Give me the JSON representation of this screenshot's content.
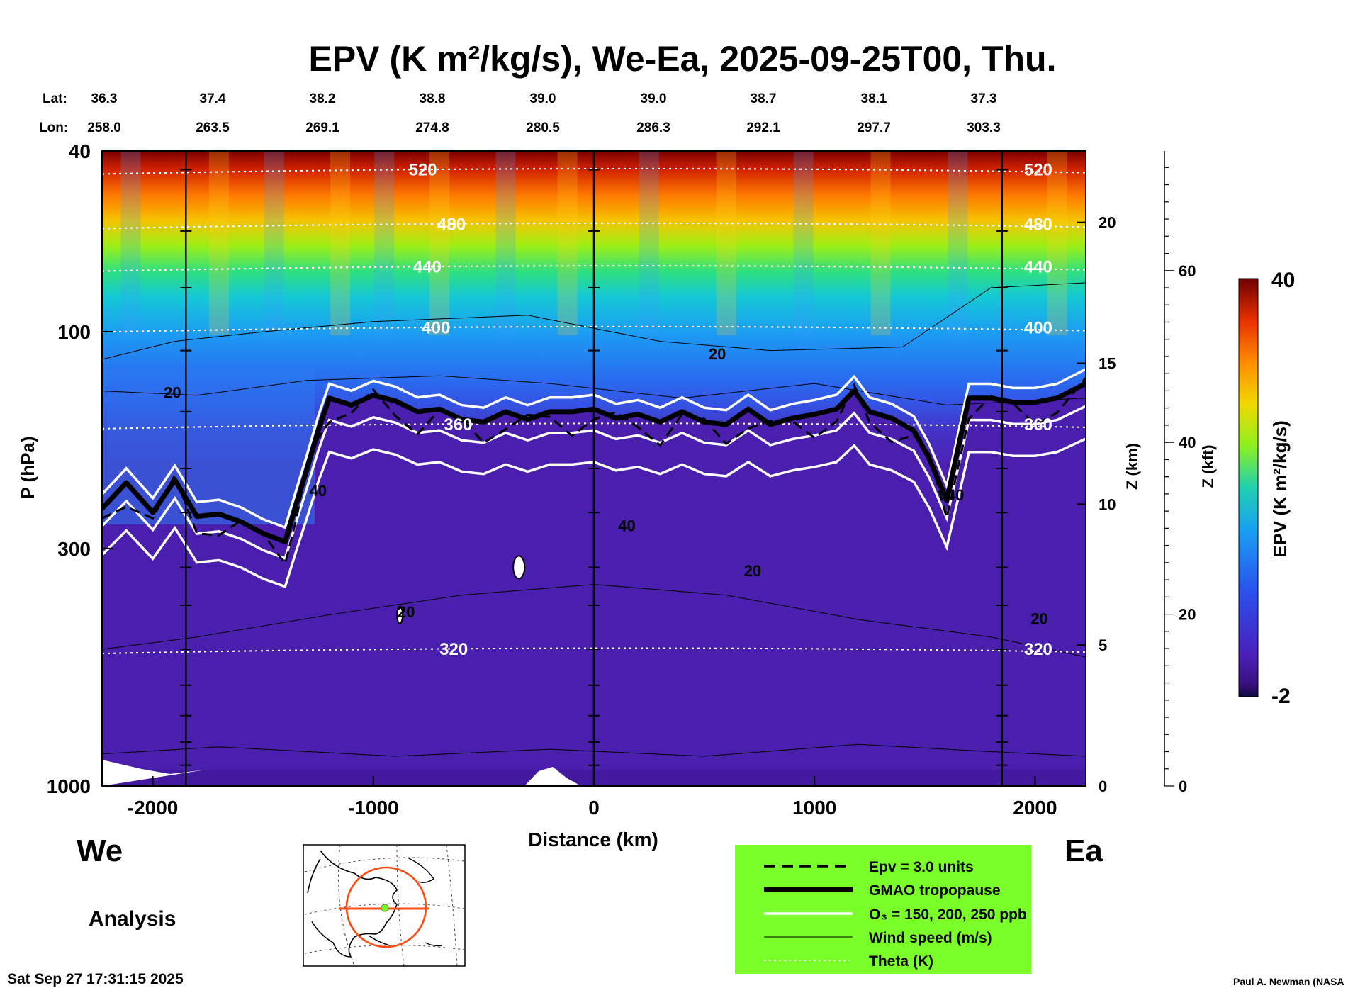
{
  "chart_data": {
    "type": "heatmap",
    "title": "EPV (K m²/kg/s), We-Ea, 2025-09-25T00, Thu.",
    "xlabel": "Distance (km)",
    "ylabel": "P (hPa)",
    "z_km_label": "Z (km)",
    "z_kft_label": "Z (kft)",
    "colorbar_label": "EPV (K m²/kg/s)",
    "colorbar_min": "-2",
    "colorbar_max": "40",
    "xlim": [
      -2230,
      2230
    ],
    "ylim": [
      1000,
      40
    ],
    "x_ticks": [
      "-2000",
      "-1000",
      "0",
      "1000",
      "2000"
    ],
    "y_ticks": [
      "40",
      "100",
      "300",
      "1000"
    ],
    "z_km_ticks": [
      "0",
      "5",
      "10",
      "15",
      "20"
    ],
    "z_kft_ticks": [
      "0",
      "20",
      "40",
      "60"
    ],
    "lat_label": "Lat:",
    "lon_label": "Lon:",
    "lat": [
      "36.3",
      "37.4",
      "38.2",
      "38.8",
      "39.0",
      "39.0",
      "38.7",
      "38.1",
      "37.3"
    ],
    "lon": [
      "258.0",
      "263.5",
      "269.1",
      "274.8",
      "280.5",
      "286.3",
      "292.1",
      "297.7",
      "303.3"
    ],
    "vertical_lines_km": [
      -1850,
      0,
      1850
    ],
    "theta": {
      "labels": [
        "520",
        "480",
        "440",
        "400",
        "360",
        "320"
      ],
      "label_values": [
        520,
        480,
        440,
        400,
        360,
        320
      ],
      "pressure_levels": [
        44,
        58,
        72,
        98,
        160,
        500
      ]
    },
    "tropopause": {
      "x": [
        -2230,
        -2120,
        -2000,
        -1900,
        -1800,
        -1700,
        -1600,
        -1500,
        -1400,
        -1350,
        -1300,
        -1250,
        -1200,
        -1100,
        -1000,
        -900,
        -800,
        -700,
        -600,
        -500,
        -400,
        -300,
        -200,
        -100,
        0,
        100,
        200,
        300,
        400,
        500,
        600,
        700,
        800,
        900,
        1000,
        1100,
        1180,
        1250,
        1350,
        1450,
        1520,
        1600,
        1700,
        1800,
        1900,
        2000,
        2100,
        2230
      ],
      "p": [
        245,
        215,
        250,
        212,
        255,
        252,
        262,
        278,
        290,
        240,
        200,
        165,
        140,
        145,
        138,
        142,
        150,
        148,
        156,
        158,
        150,
        156,
        150,
        150,
        148,
        155,
        152,
        158,
        150,
        158,
        160,
        148,
        160,
        155,
        152,
        148,
        135,
        150,
        155,
        165,
        190,
        235,
        140,
        140,
        143,
        143,
        140,
        130
      ]
    },
    "ozone_contours": [
      "150",
      "200",
      "250"
    ],
    "wind_labels": [
      "20",
      "20",
      "40",
      "40",
      "20",
      "20",
      "20",
      "40"
    ],
    "header_left": "We",
    "header_right": "Ea",
    "mode": "Analysis",
    "legend": [
      {
        "label": "Epv = 3.0 units"
      },
      {
        "label": "GMAO tropopause"
      },
      {
        "label": "O₃ = 150, 200, 250 ppb"
      },
      {
        "label": "Wind speed (m/s)"
      },
      {
        "label": "Theta (K)"
      }
    ],
    "legend_bg": "#7bff2b",
    "timestamp": "Sat Sep 27 17:31:15 2025",
    "author": "Paul A. Newman (NASA"
  }
}
